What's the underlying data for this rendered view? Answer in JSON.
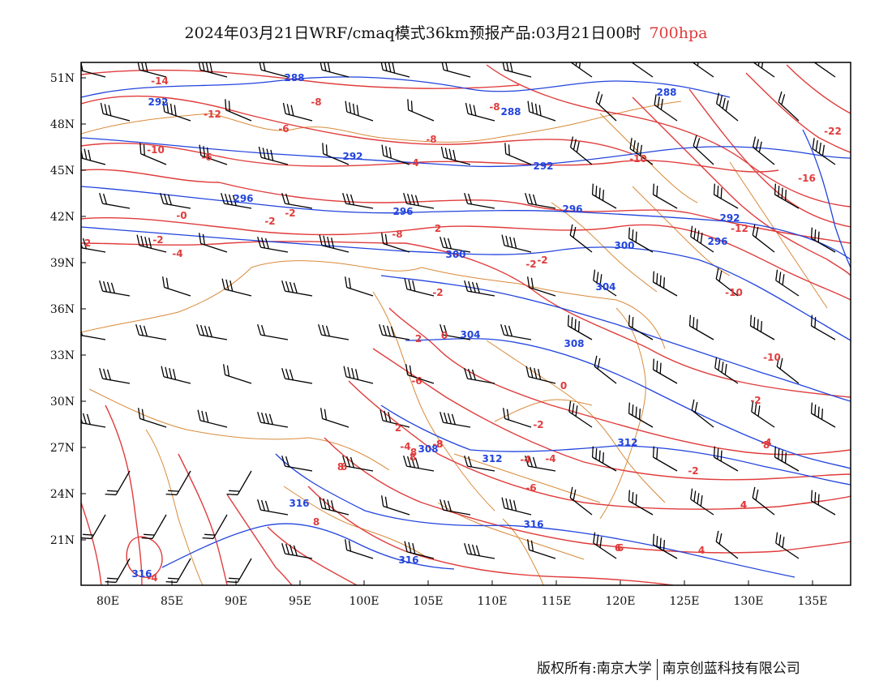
{
  "title": {
    "main": "2024年03月21日WRF/cmaq模式36km预报产品:03月21日00时",
    "level": "700hpa"
  },
  "footer": {
    "left": "版权所有:南京大学",
    "right": "南京创蓝科技有限公司"
  },
  "axes": {
    "lon_ticks": [
      "80E",
      "85E",
      "90E",
      "95E",
      "100E",
      "105E",
      "110E",
      "115E",
      "120E",
      "125E",
      "130E",
      "135E"
    ],
    "lat_ticks": [
      "51N",
      "48N",
      "45N",
      "42N",
      "39N",
      "36N",
      "33N",
      "30N",
      "27N",
      "24N",
      "21N"
    ]
  },
  "colors": {
    "temperature": "#e03c3c",
    "geopotential": "#2244dd",
    "border": "#d98a3a",
    "barb": "#000000",
    "level_text": "#e03c3c"
  },
  "geopotential_labels": [
    "292",
    "288",
    "288",
    "292",
    "292",
    "288",
    "296",
    "296",
    "296",
    "300",
    "300",
    "304",
    "304",
    "308",
    "308",
    "312",
    "312",
    "316",
    "316",
    "316",
    "316",
    "292",
    "296"
  ],
  "temperature_labels": [
    "-14",
    "-10",
    "-12",
    "-8",
    "-8",
    "-10",
    "-6",
    "-8",
    "-4",
    "-6",
    "-10",
    "-12",
    "-16",
    "-22",
    "-0",
    "-2",
    "-2",
    "-2",
    "-4",
    "-2",
    "2",
    "-8",
    "-2",
    "-10",
    "-2",
    "0",
    "2",
    "2",
    "-6",
    "-4",
    "-2",
    "8",
    "8",
    "6",
    "8",
    "6",
    "4",
    "4",
    "8",
    "-6",
    "-4",
    "2",
    "0",
    "8",
    "4",
    "6",
    "-8",
    "-2",
    "-4",
    "-4",
    "8",
    "-2",
    "-4"
  ]
}
